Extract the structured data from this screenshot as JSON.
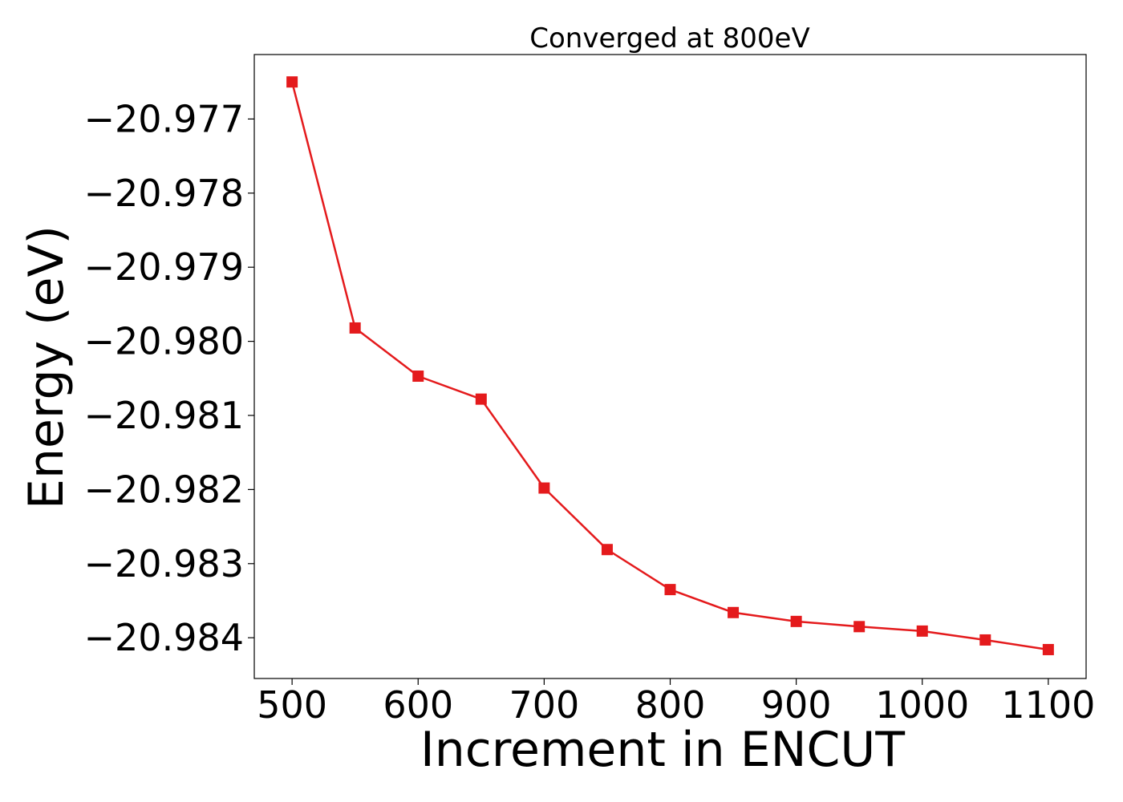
{
  "chart_data": {
    "type": "line",
    "title": "Converged at 800eV",
    "xlabel": "Increment in ENCUT",
    "ylabel": "Energy (eV)",
    "xlim": [
      470,
      1130
    ],
    "ylim": [
      -20.98455,
      -20.97613
    ],
    "x_ticks": [
      500,
      600,
      700,
      800,
      900,
      1000,
      1100
    ],
    "y_ticks": [
      -20.977,
      -20.978,
      -20.979,
      -20.98,
      -20.981,
      -20.982,
      -20.983,
      -20.984
    ],
    "x_tick_labels": [
      "500",
      "600",
      "700",
      "800",
      "900",
      "1000",
      "1100"
    ],
    "y_tick_labels": [
      "−20.977",
      "−20.978",
      "−20.979",
      "−20.980",
      "−20.981",
      "−20.982",
      "−20.983",
      "−20.984"
    ],
    "grid": false,
    "series": [
      {
        "color": "#e41a1c",
        "marker": "square",
        "x": [
          500,
          550,
          600,
          650,
          700,
          750,
          800,
          850,
          900,
          950,
          1000,
          1050,
          1100
        ],
        "y": [
          -20.9765,
          -20.97982,
          -20.98047,
          -20.98078,
          -20.98198,
          -20.98281,
          -20.98335,
          -20.98366,
          -20.98378,
          -20.98385,
          -20.98391,
          -20.98403,
          -20.98416
        ]
      }
    ]
  }
}
